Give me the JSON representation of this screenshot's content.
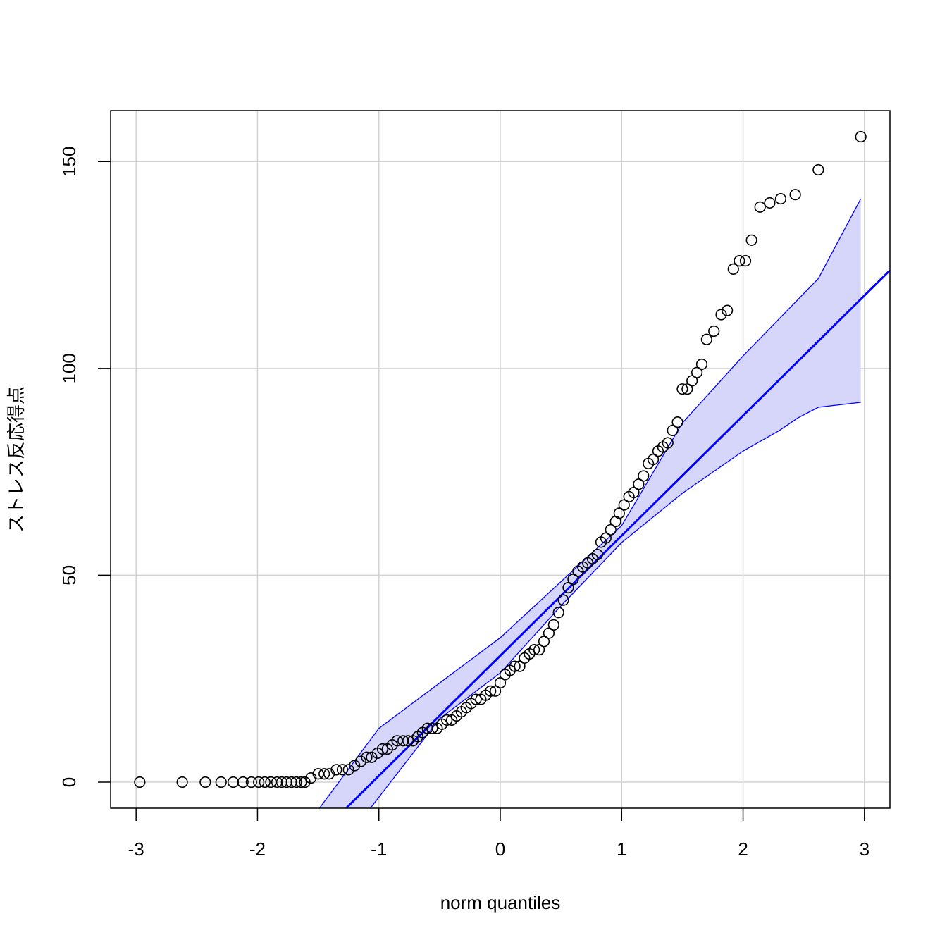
{
  "chart_data": {
    "type": "qq",
    "xlabel": "norm quantiles",
    "ylabel": "ストレス反応得点",
    "xlim": [
      -3.21,
      3.21
    ],
    "ylim": [
      -6.3,
      162.3
    ],
    "xticks": [
      -3,
      -2,
      -1,
      0,
      1,
      2,
      3
    ],
    "yticks": [
      0,
      50,
      100,
      150
    ],
    "grid": true,
    "point_color": "#000000",
    "line_color": "#0000ff",
    "band_color": "#d6d6fb",
    "points": {
      "x": [
        -2.97,
        -2.62,
        -2.43,
        -2.3,
        -2.2,
        -2.12,
        -2.05,
        -1.99,
        -1.94,
        -1.89,
        -1.84,
        -1.8,
        -1.76,
        -1.72,
        -1.68,
        -1.64,
        -1.61,
        -1.56,
        -1.5,
        -1.45,
        -1.41,
        -1.35,
        -1.3,
        -1.25,
        -1.2,
        -1.15,
        -1.1,
        -1.06,
        -1.01,
        -0.97,
        -0.93,
        -0.89,
        -0.85,
        -0.8,
        -0.76,
        -0.72,
        -0.68,
        -0.64,
        -0.6,
        -0.56,
        -0.52,
        -0.48,
        -0.44,
        -0.4,
        -0.36,
        -0.32,
        -0.28,
        -0.24,
        -0.2,
        -0.16,
        -0.12,
        -0.08,
        -0.04,
        0,
        0.04,
        0.08,
        0.12,
        0.16,
        0.2,
        0.24,
        0.28,
        0.32,
        0.36,
        0.4,
        0.44,
        0.48,
        0.52,
        0.56,
        0.6,
        0.64,
        0.68,
        0.72,
        0.76,
        0.8,
        0.83,
        0.87,
        0.91,
        0.95,
        0.98,
        1.02,
        1.06,
        1.1,
        1.14,
        1.18,
        1.22,
        1.26,
        1.3,
        1.34,
        1.38,
        1.42,
        1.46,
        1.5,
        1.54,
        1.58,
        1.62,
        1.66,
        1.7,
        1.76,
        1.82,
        1.87,
        1.92,
        1.97,
        2.02,
        2.07,
        2.14,
        2.22,
        2.31,
        2.43,
        2.62,
        2.97
      ],
      "values": [
        0,
        0,
        0,
        0,
        0,
        0,
        0,
        0,
        0,
        0,
        0,
        0,
        0,
        0,
        0,
        0,
        0,
        1,
        2,
        2,
        2,
        3,
        3,
        3,
        4,
        5,
        6,
        6,
        7,
        8,
        8,
        9,
        10,
        10,
        10,
        10,
        11,
        12,
        13,
        13,
        13,
        14,
        15,
        15,
        16,
        17,
        18,
        19,
        20,
        20,
        21,
        22,
        22,
        24,
        26,
        27,
        28,
        28,
        30,
        31,
        32,
        32,
        34,
        36,
        38,
        41,
        44,
        47,
        49,
        51,
        52,
        53,
        54,
        55,
        58,
        59,
        61,
        63,
        65,
        67,
        69,
        70,
        72,
        74,
        77,
        78,
        80,
        81,
        82,
        85,
        87,
        95,
        95,
        97,
        99,
        101,
        107,
        109,
        113,
        114,
        124,
        126,
        126,
        131,
        139,
        140,
        141,
        142,
        148,
        156
      ]
    },
    "line": {
      "x": [
        -1.27,
        3.21
      ],
      "values": [
        -6.3,
        123.7
      ]
    },
    "band_upper": {
      "x": [
        -1.49,
        -1,
        0,
        1,
        1.5,
        2,
        2.62,
        2.97
      ],
      "values": [
        -6.3,
        13,
        34.9,
        62,
        86.8,
        103,
        121.7,
        141
      ]
    },
    "band_lower": {
      "x": [
        -1.07,
        -0.5,
        0,
        0.5,
        1,
        1.5,
        2,
        2.3,
        2.45,
        2.62,
        2.97
      ],
      "values": [
        -6.3,
        15.3,
        26.4,
        42.6,
        57.9,
        69.8,
        80,
        85,
        88,
        90.6,
        91.8
      ]
    }
  }
}
